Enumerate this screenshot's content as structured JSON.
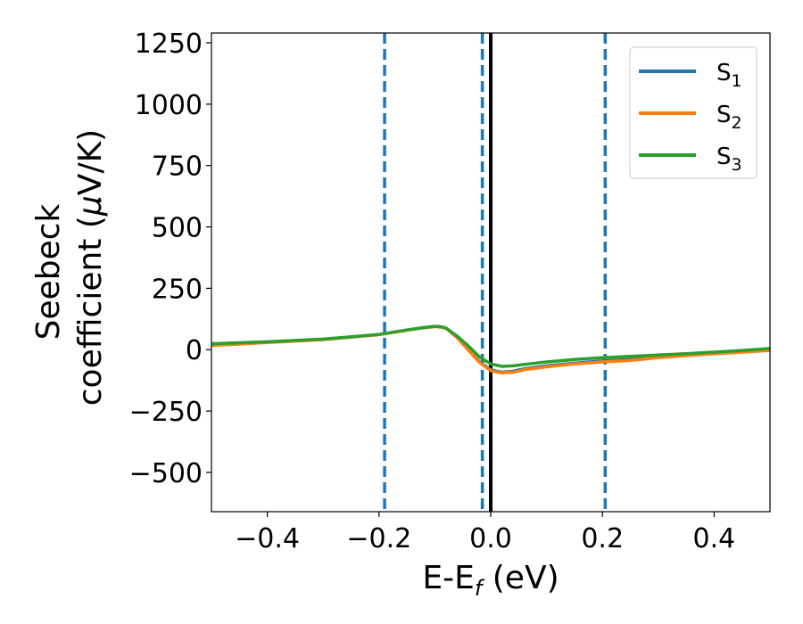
{
  "chart_data": {
    "type": "line",
    "title": "",
    "xlabel": {
      "main": "E-E",
      "sub": "f",
      "unit": " (eV)"
    },
    "ylabel": {
      "line1": "Seebeck",
      "line2": "coefficient  (",
      "mu": "μ",
      "unit": "V/K)"
    },
    "xlim": [
      -0.5,
      0.5
    ],
    "ylim": [
      -660,
      1290
    ],
    "xticks": [
      -0.4,
      -0.2,
      0.0,
      0.2,
      0.4
    ],
    "xtick_labels": [
      "−0.4",
      "−0.2",
      "0.0",
      "0.2",
      "0.4"
    ],
    "yticks": [
      -500,
      -250,
      0,
      250,
      500,
      750,
      1000,
      1250
    ],
    "ytick_labels": [
      "−500",
      "−250",
      "0",
      "250",
      "500",
      "750",
      "1000",
      "1250"
    ],
    "grid": false,
    "legend_position": "top-right",
    "x": [
      -0.5,
      -0.4,
      -0.3,
      -0.2,
      -0.15,
      -0.12,
      -0.1,
      -0.09,
      -0.08,
      -0.06,
      -0.04,
      -0.02,
      0.0,
      0.02,
      0.04,
      0.06,
      0.1,
      0.15,
      0.2,
      0.25,
      0.3,
      0.35,
      0.4,
      0.45,
      0.5
    ],
    "series": [
      {
        "name": "S",
        "sub": "1",
        "color": "#1f77b4",
        "values": [
          18,
          30,
          42,
          62,
          80,
          90,
          95,
          93,
          88,
          50,
          0,
          -50,
          -82,
          -92,
          -88,
          -78,
          -66,
          -55,
          -46,
          -40,
          -30,
          -22,
          -15,
          -8,
          -1
        ]
      },
      {
        "name": "S",
        "sub": "2",
        "color": "#ff7f0e",
        "values": [
          17,
          29,
          41,
          61,
          79,
          89,
          94,
          92,
          87,
          49,
          -2,
          -52,
          -86,
          -95,
          -92,
          -82,
          -70,
          -58,
          -50,
          -44,
          -32,
          -24,
          -17,
          -10,
          -3
        ]
      },
      {
        "name": "S",
        "sub": "3",
        "color": "#2ca02c",
        "values": [
          24,
          32,
          43,
          62,
          80,
          90,
          95,
          93,
          88,
          55,
          15,
          -30,
          -58,
          -68,
          -66,
          -60,
          -50,
          -40,
          -33,
          -27,
          -22,
          -16,
          -10,
          -3,
          5
        ]
      }
    ],
    "vlines": [
      {
        "x": -0.19,
        "style": "dashed",
        "color": "#1f77b4"
      },
      {
        "x": -0.015,
        "style": "dashed",
        "color": "#1f77b4"
      },
      {
        "x": 0.0,
        "style": "solid",
        "color": "#000000"
      },
      {
        "x": 0.205,
        "style": "dashed",
        "color": "#1f77b4"
      }
    ]
  }
}
